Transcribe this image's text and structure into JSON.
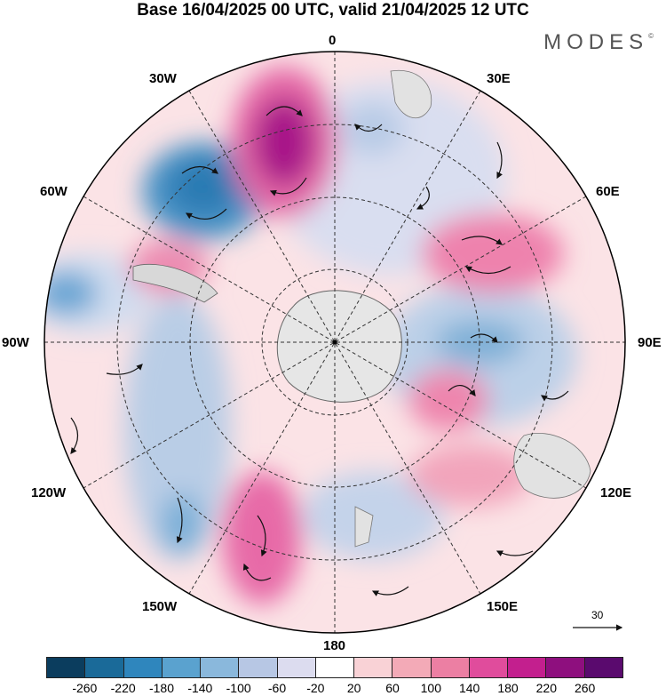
{
  "title": "Base 16/04/2025 00 UTC, valid 21/04/2025 12 UTC",
  "brand": "MODES",
  "brand_mark": "©",
  "longitude_labels": {
    "top": "0",
    "top_left": "30W",
    "top_right": "30E",
    "upper_left": "60W",
    "upper_right": "60E",
    "left": "90W",
    "right": "90E",
    "lower_left": "120W",
    "lower_right": "120E",
    "bottom_left": "150W",
    "bottom_right": "150E",
    "bottom": "180"
  },
  "vector_reference": "30",
  "colorbar": {
    "colors": [
      "#0b3d5e",
      "#1a6a99",
      "#2f86bd",
      "#5aa2cf",
      "#8ab8dc",
      "#b7c7e4",
      "#dcdcef",
      "#ffffff",
      "#f9d2d6",
      "#f3aab7",
      "#ec7fa3",
      "#e04c9c",
      "#c31f8e",
      "#8e0f7e",
      "#5a0a6e"
    ],
    "ticks": [
      "-260",
      "-220",
      "-180",
      "-140",
      "-100",
      "-60",
      "-20",
      "20",
      "60",
      "100",
      "140",
      "180",
      "220",
      "260"
    ]
  }
}
